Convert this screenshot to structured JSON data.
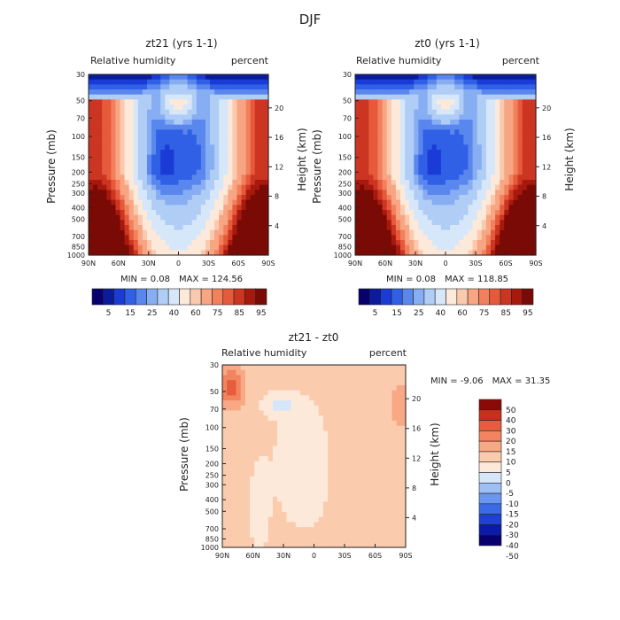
{
  "page_title": "DJF",
  "colors": {
    "levels_abs": [
      "#08006e",
      "#0a1c9c",
      "#1a3bd6",
      "#3060e6",
      "#5a87ee",
      "#87aef2",
      "#b0cdf6",
      "#d7e7fa",
      "#fde9d9",
      "#fbc9ad",
      "#f7a583",
      "#f2805d",
      "#e65a3b",
      "#cc3522",
      "#a8190d",
      "#7a0a05"
    ],
    "levels_diff": [
      "#08006e",
      "#0b1aa8",
      "#1e40d8",
      "#3a6be6",
      "#6a96f0",
      "#9dbff5",
      "#d5e6fa",
      "#fde9d9",
      "#fbcbae",
      "#f8a884",
      "#f28460",
      "#e65c3c",
      "#c92f1c",
      "#8b0a08"
    ]
  },
  "chart_data": [
    {
      "type": "heatmap",
      "title": "zt21 (yrs 1-1)",
      "left_label": "Relative humidity",
      "right_label": "percent",
      "ylabel": "Pressure (mb)",
      "ylabel_right": "Height (km)",
      "x_ticks": [
        "90N",
        "60N",
        "30N",
        "0",
        "30S",
        "60S",
        "90S"
      ],
      "y_ticks": [
        "30",
        "50",
        "70",
        "100",
        "150",
        "200",
        "250",
        "300",
        "400",
        "500",
        "700",
        "850",
        "1000"
      ],
      "y_right_ticks": [
        "20",
        "16",
        "12",
        "8",
        "4"
      ],
      "min_text": "MIN =   0.08",
      "max_text": "MAX = 124.56",
      "colorbar_labels": [
        "5",
        "15",
        "25",
        "40",
        "60",
        "75",
        "85",
        "95"
      ]
    },
    {
      "type": "heatmap",
      "title": "zt0 (yrs 1-1)",
      "left_label": "Relative humidity",
      "right_label": "percent",
      "ylabel": "Pressure (mb)",
      "ylabel_right": "Height (km)",
      "x_ticks": [
        "90N",
        "60N",
        "30N",
        "0",
        "30S",
        "60S",
        "90S"
      ],
      "y_ticks": [
        "30",
        "50",
        "70",
        "100",
        "150",
        "200",
        "250",
        "300",
        "400",
        "500",
        "700",
        "850",
        "1000"
      ],
      "y_right_ticks": [
        "20",
        "16",
        "12",
        "8",
        "4"
      ],
      "min_text": "MIN =   0.08",
      "max_text": "MAX = 118.85",
      "colorbar_labels": [
        "5",
        "15",
        "25",
        "40",
        "60",
        "75",
        "85",
        "95"
      ]
    },
    {
      "type": "heatmap",
      "title": "zt21 - zt0",
      "left_label": "Relative humidity",
      "right_label": "percent",
      "ylabel": "Pressure (mb)",
      "ylabel_right": "Height (km)",
      "x_ticks": [
        "90N",
        "60N",
        "30N",
        "0",
        "30S",
        "60S",
        "90S"
      ],
      "y_ticks": [
        "30",
        "50",
        "70",
        "100",
        "150",
        "200",
        "250",
        "300",
        "400",
        "500",
        "700",
        "850",
        "1000"
      ],
      "y_right_ticks": [
        "20",
        "16",
        "12",
        "8",
        "4"
      ],
      "min_text": "MIN =   -9.06",
      "max_text": "MAX =  31.35",
      "colorbar_labels": [
        "50",
        "40",
        "30",
        "20",
        "15",
        "10",
        "5",
        "0",
        "-5",
        "-10",
        "-15",
        "-20",
        "-30",
        "-40",
        "-50"
      ]
    }
  ]
}
